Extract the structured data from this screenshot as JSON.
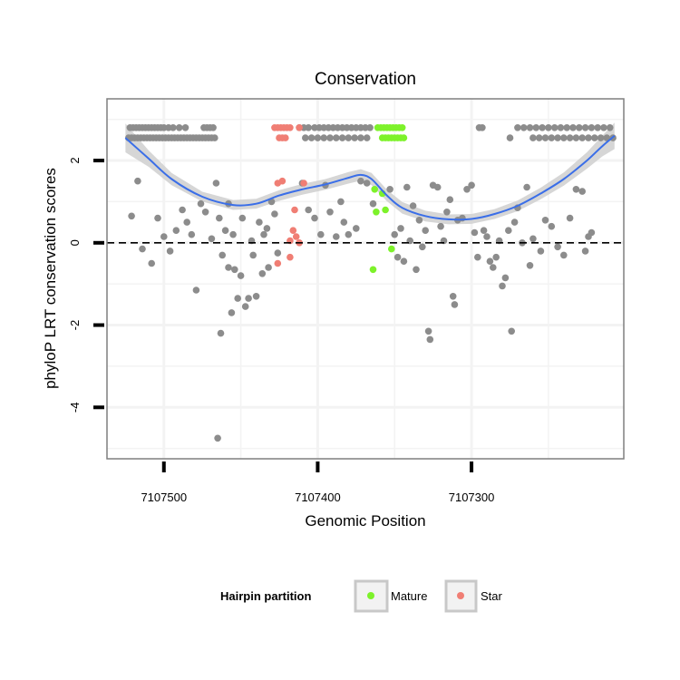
{
  "chart_data": {
    "type": "scatter",
    "title": "Conservation",
    "xlabel": "Genomic Position",
    "ylabel": "phyloP LRT conservation scores",
    "x_reversed": true,
    "xlim": [
      7107537,
      7107201
    ],
    "ylim": [
      -5.25,
      3.5
    ],
    "xticks": [
      7107500,
      7107400,
      7107300
    ],
    "xtick_labels": [
      "7107500",
      "7107400",
      "7107300"
    ],
    "yticks": [
      2,
      0,
      -2,
      -4
    ],
    "ytick_labels": [
      "2",
      "0",
      "-2",
      "-4"
    ],
    "grid": true,
    "hline": {
      "y": 0,
      "style": "dashed"
    },
    "legend": {
      "title": "Hairpin partition",
      "position": "bottom",
      "entries": [
        {
          "label": "Mature",
          "color": "#7df22a"
        },
        {
          "label": "Star",
          "color": "#f07e74"
        }
      ]
    },
    "colors": {
      "other": "#8c8c8c",
      "mature": "#7df22a",
      "star": "#f07e74",
      "smooth": "#3a6ee8",
      "ribbon": "#cfcfcf"
    },
    "series": [
      {
        "group": "other",
        "points": [
          [
            7107522,
            2.8
          ],
          [
            7107520,
            2.8
          ],
          [
            7107518,
            2.8
          ],
          [
            7107516,
            2.8
          ],
          [
            7107514,
            2.8
          ],
          [
            7107512,
            2.8
          ],
          [
            7107510,
            2.8
          ],
          [
            7107508,
            2.8
          ],
          [
            7107506,
            2.8
          ],
          [
            7107504,
            2.8
          ],
          [
            7107502,
            2.8
          ],
          [
            7107500,
            2.8
          ],
          [
            7107497,
            2.8
          ],
          [
            7107494,
            2.8
          ],
          [
            7107490,
            2.8
          ],
          [
            7107486,
            2.8
          ],
          [
            7107474,
            2.8
          ],
          [
            7107472,
            2.8
          ],
          [
            7107470,
            2.8
          ],
          [
            7107468,
            2.8
          ],
          [
            7107523,
            2.55
          ],
          [
            7107521,
            2.55
          ],
          [
            7107519,
            2.55
          ],
          [
            7107517,
            2.55
          ],
          [
            7107515,
            2.55
          ],
          [
            7107513,
            2.55
          ],
          [
            7107511,
            2.55
          ],
          [
            7107509,
            2.55
          ],
          [
            7107507,
            2.55
          ],
          [
            7107505,
            2.55
          ],
          [
            7107503,
            2.55
          ],
          [
            7107501,
            2.55
          ],
          [
            7107499,
            2.55
          ],
          [
            7107497,
            2.55
          ],
          [
            7107495,
            2.55
          ],
          [
            7107493,
            2.55
          ],
          [
            7107491,
            2.55
          ],
          [
            7107489,
            2.55
          ],
          [
            7107487,
            2.55
          ],
          [
            7107485,
            2.55
          ],
          [
            7107483,
            2.55
          ],
          [
            7107481,
            2.55
          ],
          [
            7107479,
            2.55
          ],
          [
            7107477,
            2.55
          ],
          [
            7107475,
            2.55
          ],
          [
            7107473,
            2.55
          ],
          [
            7107471,
            2.55
          ],
          [
            7107469,
            2.55
          ],
          [
            7107467,
            2.55
          ],
          [
            7107412,
            2.8
          ],
          [
            7107409,
            2.8
          ],
          [
            7107406,
            2.8
          ],
          [
            7107402,
            2.8
          ],
          [
            7107399,
            2.8
          ],
          [
            7107396,
            2.8
          ],
          [
            7107393,
            2.8
          ],
          [
            7107390,
            2.8
          ],
          [
            7107387,
            2.8
          ],
          [
            7107384,
            2.8
          ],
          [
            7107381,
            2.8
          ],
          [
            7107378,
            2.8
          ],
          [
            7107375,
            2.8
          ],
          [
            7107372,
            2.8
          ],
          [
            7107369,
            2.8
          ],
          [
            7107366,
            2.8
          ],
          [
            7107408,
            2.55
          ],
          [
            7107404,
            2.55
          ],
          [
            7107400,
            2.55
          ],
          [
            7107396,
            2.55
          ],
          [
            7107392,
            2.55
          ],
          [
            7107388,
            2.55
          ],
          [
            7107384,
            2.55
          ],
          [
            7107380,
            2.55
          ],
          [
            7107376,
            2.55
          ],
          [
            7107372,
            2.55
          ],
          [
            7107368,
            2.55
          ],
          [
            7107295,
            2.8
          ],
          [
            7107293,
            2.8
          ],
          [
            7107270,
            2.8
          ],
          [
            7107266,
            2.8
          ],
          [
            7107262,
            2.8
          ],
          [
            7107258,
            2.8
          ],
          [
            7107254,
            2.8
          ],
          [
            7107250,
            2.8
          ],
          [
            7107246,
            2.8
          ],
          [
            7107242,
            2.8
          ],
          [
            7107238,
            2.8
          ],
          [
            7107234,
            2.8
          ],
          [
            7107230,
            2.8
          ],
          [
            7107226,
            2.8
          ],
          [
            7107222,
            2.8
          ],
          [
            7107218,
            2.8
          ],
          [
            7107214,
            2.8
          ],
          [
            7107210,
            2.8
          ],
          [
            7107275,
            2.55
          ],
          [
            7107260,
            2.55
          ],
          [
            7107256,
            2.55
          ],
          [
            7107252,
            2.55
          ],
          [
            7107248,
            2.55
          ],
          [
            7107244,
            2.55
          ],
          [
            7107240,
            2.55
          ],
          [
            7107236,
            2.55
          ],
          [
            7107232,
            2.55
          ],
          [
            7107228,
            2.55
          ],
          [
            7107224,
            2.55
          ],
          [
            7107220,
            2.55
          ],
          [
            7107216,
            2.55
          ],
          [
            7107212,
            2.55
          ],
          [
            7107208,
            2.55
          ],
          [
            7107517,
            1.5
          ],
          [
            7107521,
            0.65
          ],
          [
            7107514,
            -0.15
          ],
          [
            7107508,
            -0.5
          ],
          [
            7107504,
            0.6
          ],
          [
            7107500,
            0.15
          ],
          [
            7107496,
            -0.2
          ],
          [
            7107492,
            0.3
          ],
          [
            7107488,
            0.8
          ],
          [
            7107485,
            0.5
          ],
          [
            7107482,
            0.2
          ],
          [
            7107479,
            -1.15
          ],
          [
            7107476,
            0.95
          ],
          [
            7107473,
            0.75
          ],
          [
            7107469,
            0.1
          ],
          [
            7107466,
            1.45
          ],
          [
            7107464,
            0.6
          ],
          [
            7107462,
            -0.3
          ],
          [
            7107460,
            0.3
          ],
          [
            7107458,
            -0.6
          ],
          [
            7107456,
            -1.7
          ],
          [
            7107455,
            0.2
          ],
          [
            7107454,
            -0.65
          ],
          [
            7107452,
            -1.35
          ],
          [
            7107450,
            -0.8
          ],
          [
            7107449,
            0.6
          ],
          [
            7107447,
            -1.55
          ],
          [
            7107445,
            -1.35
          ],
          [
            7107443,
            0.05
          ],
          [
            7107442,
            -0.3
          ],
          [
            7107440,
            -1.3
          ],
          [
            7107438,
            0.5
          ],
          [
            7107436,
            -0.75
          ],
          [
            7107435,
            0.2
          ],
          [
            7107433,
            0.35
          ],
          [
            7107432,
            -0.6
          ],
          [
            7107430,
            1.0
          ],
          [
            7107428,
            0.7
          ],
          [
            7107426,
            -0.25
          ],
          [
            7107463,
            -2.2
          ],
          [
            7107465,
            -4.75
          ],
          [
            7107458,
            0.95
          ],
          [
            7107410,
            1.45
          ],
          [
            7107406,
            0.8
          ],
          [
            7107402,
            0.6
          ],
          [
            7107398,
            0.2
          ],
          [
            7107395,
            1.4
          ],
          [
            7107392,
            0.75
          ],
          [
            7107388,
            0.15
          ],
          [
            7107385,
            1.0
          ],
          [
            7107383,
            0.5
          ],
          [
            7107380,
            0.2
          ],
          [
            7107375,
            0.35
          ],
          [
            7107372,
            1.5
          ],
          [
            7107368,
            1.45
          ],
          [
            7107364,
            0.95
          ],
          [
            7107353,
            1.3
          ],
          [
            7107350,
            0.2
          ],
          [
            7107348,
            -0.35
          ],
          [
            7107346,
            0.35
          ],
          [
            7107344,
            -0.45
          ],
          [
            7107342,
            1.35
          ],
          [
            7107340,
            0.05
          ],
          [
            7107338,
            0.9
          ],
          [
            7107336,
            -0.65
          ],
          [
            7107334,
            0.55
          ],
          [
            7107332,
            -0.1
          ],
          [
            7107330,
            0.3
          ],
          [
            7107328,
            -2.15
          ],
          [
            7107327,
            -2.35
          ],
          [
            7107325,
            1.4
          ],
          [
            7107322,
            1.35
          ],
          [
            7107320,
            0.4
          ],
          [
            7107318,
            0.05
          ],
          [
            7107316,
            0.75
          ],
          [
            7107314,
            1.05
          ],
          [
            7107312,
            -1.3
          ],
          [
            7107311,
            -1.5
          ],
          [
            7107309,
            0.55
          ],
          [
            7107306,
            0.6
          ],
          [
            7107303,
            1.3
          ],
          [
            7107300,
            1.4
          ],
          [
            7107298,
            0.25
          ],
          [
            7107296,
            -0.35
          ],
          [
            7107292,
            0.3
          ],
          [
            7107290,
            0.15
          ],
          [
            7107288,
            -0.45
          ],
          [
            7107286,
            -0.6
          ],
          [
            7107284,
            -0.35
          ],
          [
            7107282,
            0.05
          ],
          [
            7107280,
            -1.05
          ],
          [
            7107278,
            -0.85
          ],
          [
            7107276,
            0.3
          ],
          [
            7107274,
            -2.15
          ],
          [
            7107272,
            0.5
          ],
          [
            7107270,
            0.85
          ],
          [
            7107267,
            0.0
          ],
          [
            7107264,
            1.35
          ],
          [
            7107260,
            0.1
          ],
          [
            7107255,
            -0.2
          ],
          [
            7107252,
            0.55
          ],
          [
            7107248,
            0.4
          ],
          [
            7107244,
            -0.1
          ],
          [
            7107240,
            -0.3
          ],
          [
            7107236,
            0.6
          ],
          [
            7107232,
            1.3
          ],
          [
            7107228,
            1.25
          ],
          [
            7107224,
            0.15
          ],
          [
            7107222,
            0.25
          ],
          [
            7107226,
            -0.2
          ],
          [
            7107262,
            -0.55
          ]
        ]
      },
      {
        "group": "mature",
        "points": [
          [
            7107361,
            2.8
          ],
          [
            7107359,
            2.8
          ],
          [
            7107357,
            2.8
          ],
          [
            7107355,
            2.8
          ],
          [
            7107353,
            2.8
          ],
          [
            7107351,
            2.8
          ],
          [
            7107349,
            2.8
          ],
          [
            7107347,
            2.8
          ],
          [
            7107345,
            2.8
          ],
          [
            7107358,
            2.55
          ],
          [
            7107356,
            2.55
          ],
          [
            7107354,
            2.55
          ],
          [
            7107352,
            2.55
          ],
          [
            7107350,
            2.55
          ],
          [
            7107348,
            2.55
          ],
          [
            7107346,
            2.55
          ],
          [
            7107344,
            2.55
          ],
          [
            7107363,
            1.3
          ],
          [
            7107358,
            1.2
          ],
          [
            7107362,
            0.75
          ],
          [
            7107356,
            0.8
          ],
          [
            7107364,
            -0.65
          ],
          [
            7107352,
            -0.15
          ]
        ]
      },
      {
        "group": "star",
        "points": [
          [
            7107428,
            2.8
          ],
          [
            7107426,
            2.8
          ],
          [
            7107424,
            2.8
          ],
          [
            7107422,
            2.8
          ],
          [
            7107420,
            2.8
          ],
          [
            7107418,
            2.8
          ],
          [
            7107412,
            2.8
          ],
          [
            7107425,
            2.55
          ],
          [
            7107423,
            2.55
          ],
          [
            7107421,
            2.55
          ],
          [
            7107426,
            1.45
          ],
          [
            7107423,
            1.5
          ],
          [
            7107409,
            1.45
          ],
          [
            7107415,
            0.8
          ],
          [
            7107416,
            0.3
          ],
          [
            7107418,
            0.05
          ],
          [
            7107414,
            0.15
          ],
          [
            7107412,
            0.0
          ],
          [
            7107418,
            -0.35
          ],
          [
            7107426,
            -0.5
          ]
        ]
      }
    ],
    "smooth": [
      [
        7107525,
        2.55
      ],
      [
        7107510,
        2.05
      ],
      [
        7107495,
        1.55
      ],
      [
        7107475,
        1.12
      ],
      [
        7107455,
        0.92
      ],
      [
        7107440,
        0.95
      ],
      [
        7107425,
        1.15
      ],
      [
        7107410,
        1.3
      ],
      [
        7107395,
        1.42
      ],
      [
        7107380,
        1.58
      ],
      [
        7107372,
        1.65
      ],
      [
        7107365,
        1.55
      ],
      [
        7107355,
        1.15
      ],
      [
        7107345,
        0.85
      ],
      [
        7107330,
        0.65
      ],
      [
        7107315,
        0.57
      ],
      [
        7107300,
        0.58
      ],
      [
        7107285,
        0.7
      ],
      [
        7107270,
        0.9
      ],
      [
        7107255,
        1.2
      ],
      [
        7107240,
        1.55
      ],
      [
        7107225,
        2.0
      ],
      [
        7107215,
        2.35
      ],
      [
        7107207,
        2.6
      ]
    ],
    "ribbon_halfwidth": [
      0.35,
      0.2,
      0.15,
      0.12,
      0.12,
      0.12,
      0.13,
      0.13,
      0.13,
      0.14,
      0.14,
      0.15,
      0.14,
      0.14,
      0.13,
      0.12,
      0.12,
      0.12,
      0.13,
      0.14,
      0.16,
      0.2,
      0.25,
      0.32
    ]
  }
}
